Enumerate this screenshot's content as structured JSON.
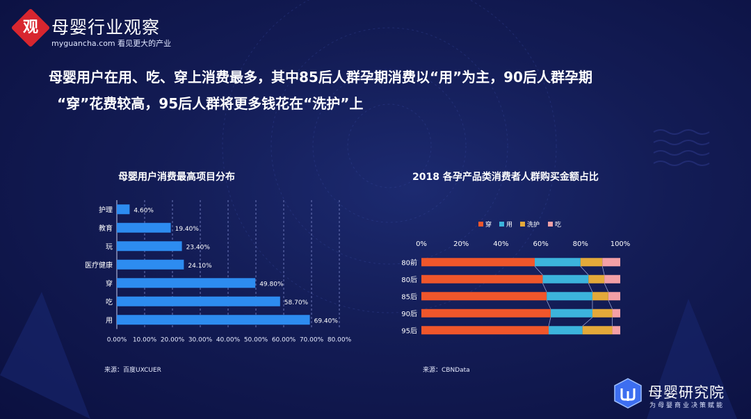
{
  "logo": {
    "mark_char": "观",
    "title": "母婴行业观察",
    "subtitle": "myguancha.com 看见更大的产业"
  },
  "headline": {
    "line1": "母婴用户在用、吃、穿上消费最多，其中85后人群孕期消费以“用”为主，90后人群孕期",
    "line2": "“穿”花费较高，95后人群将更多钱花在“洗护”上"
  },
  "colors": {
    "bar": "#2d8cf0",
    "wear": "#f0562b",
    "use": "#3cb4dc",
    "wash": "#e3a93a",
    "eat": "#f3a0a6"
  },
  "chart_data": [
    {
      "type": "bar",
      "orientation": "horizontal",
      "title": "母婴用户消费最高项目分布",
      "categories": [
        "护理",
        "教育",
        "玩",
        "医疗健康",
        "穿",
        "吃",
        "用"
      ],
      "values": [
        4.6,
        19.4,
        23.4,
        24.1,
        49.8,
        58.7,
        69.4
      ],
      "value_labels": [
        "4.60%",
        "19.40%",
        "23.40%",
        "24.10%",
        "49.80%",
        "58.70%",
        "69.40%"
      ],
      "xlim": [
        0,
        80
      ],
      "x_ticks": [
        "0.00%",
        "10.00%",
        "20.00%",
        "30.00%",
        "40.00%",
        "50.00%",
        "60.00%",
        "70.00%",
        "80.00%"
      ],
      "grid": "vertical-dashed",
      "source": "来源：百度UXCUER"
    },
    {
      "type": "bar",
      "orientation": "horizontal",
      "stacked": "percent",
      "title": "2018 各孕产品类消费者人群购买金额占比",
      "categories": [
        "80前",
        "80后",
        "85后",
        "90后",
        "95后"
      ],
      "series": [
        {
          "name": "穿",
          "values": [
            57,
            61,
            63,
            65,
            64
          ]
        },
        {
          "name": "用",
          "values": [
            23,
            23,
            23,
            21,
            17
          ]
        },
        {
          "name": "洗护",
          "values": [
            11,
            8,
            8,
            10,
            15
          ]
        },
        {
          "name": "吃",
          "values": [
            9,
            8,
            6,
            4,
            4
          ]
        }
      ],
      "xlim": [
        0,
        100
      ],
      "x_ticks": [
        "0%",
        "20%",
        "40%",
        "60%",
        "80%",
        "100%"
      ],
      "legend": "top",
      "source": "来源：CBNData"
    }
  ],
  "brand": {
    "title": "母婴研究院",
    "subtitle": "为母婴商业决策赋能"
  }
}
